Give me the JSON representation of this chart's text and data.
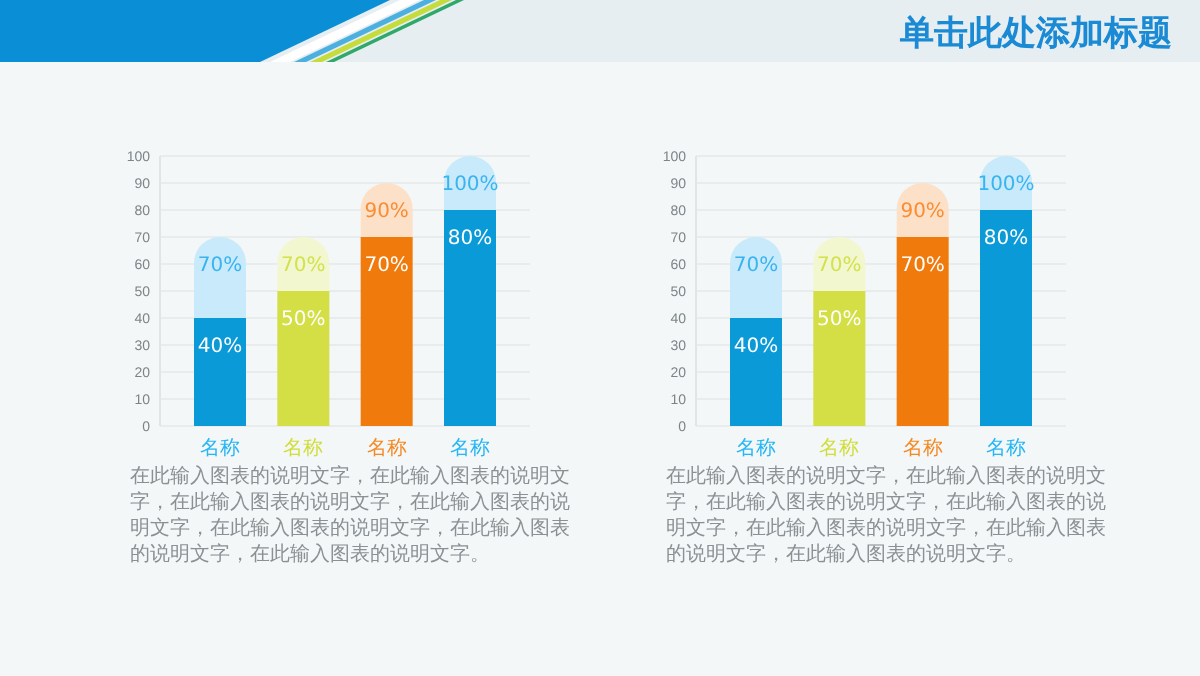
{
  "chart_data": [
    {
      "type": "bar",
      "stacked": true,
      "categories": [
        "名称",
        "名称",
        "名称",
        "名称"
      ],
      "series": [
        {
          "colors": [
            "#0a9ad8",
            "#d3df45",
            "#f07a0c",
            "#0a9ad8"
          ],
          "values": [
            40,
            50,
            70,
            80
          ],
          "value_labels": [
            "40%",
            "50%",
            "70%",
            "80%"
          ]
        },
        {
          "colors": [
            "#c8eafb",
            "#f3f7cf",
            "#fde0c8",
            "#c8eafb"
          ],
          "values": [
            30,
            20,
            20,
            20
          ]
        }
      ],
      "totals": [
        "70%",
        "70%",
        "90%",
        "100%"
      ],
      "ylim": [
        0,
        100
      ],
      "yticks": [
        0,
        10,
        20,
        30,
        40,
        50,
        60,
        70,
        80,
        90,
        100
      ],
      "grid": "y",
      "annotations": [
        "在此输入图表的说明文字，在此输入图表的说明文字，在此输入图表的说明文字，在此输入图表的说明文字，在此输入图表的说明文字，在此输入图表的说明文字，在此输入图表的说明文字。"
      ]
    },
    {
      "type": "bar",
      "stacked": true,
      "title": "单击此处添加标题",
      "categories": [
        "名称",
        "名称",
        "名称",
        "名称"
      ],
      "series": [
        {
          "colors": [
            "#0a9ad8",
            "#d3df45",
            "#f07a0c",
            "#0a9ad8"
          ],
          "values": [
            40,
            50,
            70,
            80
          ],
          "value_labels": [
            "40%",
            "50%",
            "70%",
            "80%"
          ]
        },
        {
          "colors": [
            "#c8eafb",
            "#f3f7cf",
            "#fde0c8",
            "#c8eafb"
          ],
          "values": [
            30,
            20,
            20,
            20
          ]
        }
      ],
      "totals": [
        "70%",
        "70%",
        "90%",
        "100%"
      ],
      "ylim": [
        0,
        100
      ],
      "yticks": [
        0,
        10,
        20,
        30,
        40,
        50,
        60,
        70,
        80,
        90,
        100
      ],
      "grid": "y",
      "annotations": [
        "在此输入图表的说明文字，在此输入图表的说明文字，在此输入图表的说明文字，在此输入图表的说明文字，在此输入图表的说明文字，在此输入图表的说明文字，在此输入图表的说明文字。"
      ]
    }
  ]
}
